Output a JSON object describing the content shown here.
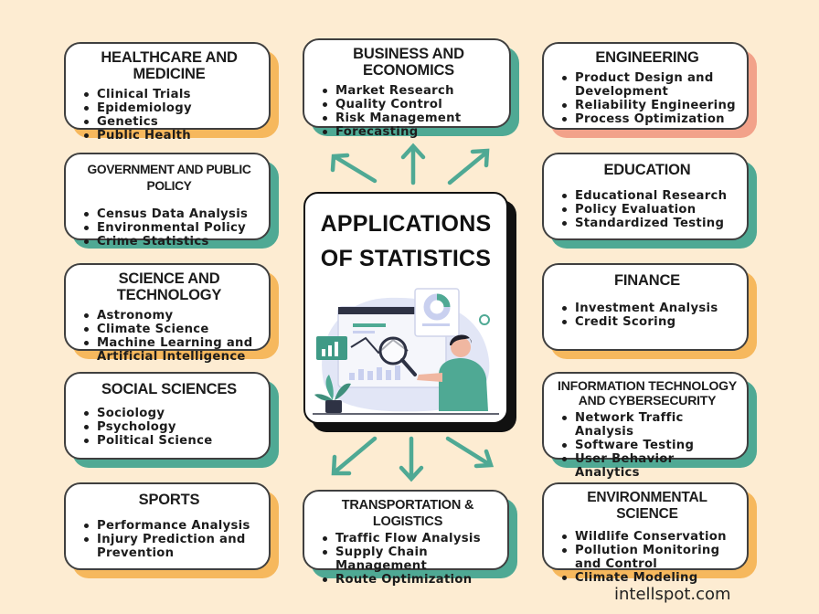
{
  "center": {
    "title": "APPLICATIONS OF STATISTICS"
  },
  "cards": {
    "healthcare": {
      "title": "HEALTHCARE AND MEDICINE",
      "items": [
        "Clinical Trials",
        "Epidemiology",
        "Genetics",
        "Public Health"
      ]
    },
    "business": {
      "title": "BUSINESS AND ECONOMICS",
      "items": [
        "Market Research",
        "Quality Control",
        "Risk Management",
        "Forecasting"
      ]
    },
    "engineering": {
      "title": "ENGINEERING",
      "items": [
        "Product Design and Development",
        "Reliability Engineering",
        "Process Optimization"
      ]
    },
    "government": {
      "title": "GOVERNMENT AND PUBLIC POLICY",
      "items": [
        "Census Data Analysis",
        "Environmental Policy",
        "Crime Statistics"
      ]
    },
    "education": {
      "title": "EDUCATION",
      "items": [
        "Educational Research",
        "Policy Evaluation",
        "Standardized Testing"
      ]
    },
    "science": {
      "title": "SCIENCE AND TECHNOLOGY",
      "items": [
        "Astronomy",
        "Climate Science",
        "Machine Learning and Artificial Intelligence"
      ]
    },
    "finance": {
      "title": "FINANCE",
      "items": [
        "Investment Analysis",
        "Credit Scoring"
      ]
    },
    "social": {
      "title": "SOCIAL SCIENCES",
      "items": [
        "Sociology",
        "Psychology",
        "Political Science"
      ]
    },
    "it": {
      "title": "INFORMATION TECHNOLOGY AND CYBERSECURITY",
      "items": [
        "Network Traffic Analysis",
        "Software Testing",
        "User Behavior Analytics"
      ]
    },
    "sports": {
      "title": "SPORTS",
      "items": [
        "Performance Analysis",
        "Injury Prediction and Prevention"
      ]
    },
    "transport": {
      "title": "TRANSPORTATION & LOGISTICS",
      "items": [
        "Traffic Flow Analysis",
        "Supply Chain Management",
        "Route Optimization"
      ]
    },
    "environment": {
      "title": "ENVIRONMENTAL SCIENCE",
      "items": [
        "Wildlife Conservation",
        "Pollution Monitoring and Control",
        "Climate Modeling"
      ]
    }
  },
  "footer": {
    "site": "intellspot.com"
  },
  "colors": {
    "background": "#fdecd2",
    "orange": "#f6b85d",
    "teal": "#4fa994",
    "salmon": "#f2a28a",
    "arrow": "#4fa994"
  },
  "icons": [
    "magnifier-icon",
    "dashboard-illustration",
    "plant-icon"
  ]
}
